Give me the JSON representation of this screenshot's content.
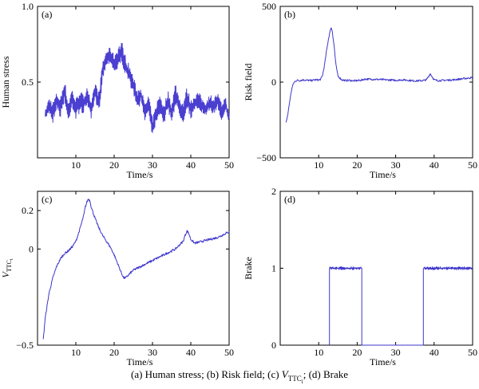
{
  "chart_data": [
    {
      "type": "line",
      "panel_label": "(a)",
      "xlabel": "Time/s",
      "ylabel": "Human stress",
      "xlim": [
        0,
        50
      ],
      "ylim": [
        0,
        1
      ],
      "xticks": [
        10,
        20,
        30,
        40,
        50
      ],
      "xtick_labels": [
        "10",
        "20",
        "30",
        "40",
        "50"
      ],
      "yticks": [
        0.5,
        1
      ],
      "ytick_labels": [
        "0.5",
        "1.0"
      ],
      "line_color": "#4a3fd0",
      "x": [
        2,
        3,
        4,
        5,
        6,
        7,
        8,
        9,
        10,
        11,
        12,
        13,
        14,
        15,
        16,
        17,
        18,
        19,
        20,
        21,
        22,
        23,
        24,
        25,
        26,
        27,
        28,
        29,
        30,
        31,
        32,
        33,
        34,
        35,
        36,
        37,
        38,
        39,
        40,
        41,
        42,
        43,
        44,
        45,
        46,
        47,
        48,
        49,
        50
      ],
      "y": [
        0.28,
        0.35,
        0.3,
        0.38,
        0.33,
        0.45,
        0.3,
        0.4,
        0.32,
        0.38,
        0.35,
        0.42,
        0.3,
        0.44,
        0.36,
        0.58,
        0.66,
        0.68,
        0.62,
        0.66,
        0.7,
        0.6,
        0.55,
        0.48,
        0.38,
        0.42,
        0.3,
        0.36,
        0.2,
        0.3,
        0.36,
        0.28,
        0.38,
        0.3,
        0.42,
        0.34,
        0.3,
        0.4,
        0.32,
        0.36,
        0.38,
        0.34,
        0.32,
        0.37,
        0.34,
        0.38,
        0.3,
        0.36,
        0.26
      ],
      "amplitude": [
        0.06,
        0.1,
        0.14,
        0.1,
        0.14,
        0.16,
        0.14,
        0.12,
        0.14,
        0.16,
        0.12,
        0.14,
        0.1,
        0.14,
        0.14,
        0.12,
        0.1,
        0.1,
        0.12,
        0.16,
        0.14,
        0.14,
        0.12,
        0.12,
        0.14,
        0.12,
        0.1,
        0.12,
        0.12,
        0.12,
        0.14,
        0.12,
        0.14,
        0.12,
        0.16,
        0.12,
        0.14,
        0.14,
        0.12,
        0.12,
        0.12,
        0.1,
        0.12,
        0.1,
        0.12,
        0.1,
        0.12,
        0.1,
        0.06
      ]
    },
    {
      "type": "line",
      "panel_label": "(b)",
      "xlabel": "Time/s",
      "ylabel": "Risk field",
      "xlim": [
        0,
        50
      ],
      "ylim": [
        -500,
        500
      ],
      "xticks": [
        10,
        20,
        30,
        40,
        50
      ],
      "xtick_labels": [
        "10",
        "20",
        "30",
        "40",
        "50"
      ],
      "yticks": [
        -500,
        0,
        500
      ],
      "ytick_labels": [
        "−500",
        "0",
        "500"
      ],
      "line_color": "#3e36cc",
      "x": [
        1.5,
        2,
        2.5,
        3,
        3.5,
        4,
        4.5,
        5,
        6,
        7,
        8,
        9,
        10,
        10.5,
        11,
        11.5,
        12,
        12.5,
        13,
        13.2,
        13.5,
        14,
        14.5,
        15,
        16,
        17,
        18,
        19,
        20,
        21,
        22,
        25,
        30,
        32,
        35,
        37,
        38,
        38.5,
        39,
        39.5,
        40,
        41,
        45,
        50
      ],
      "y": [
        -270,
        -210,
        -120,
        -45,
        -5,
        8,
        12,
        10,
        15,
        12,
        10,
        15,
        14,
        18,
        45,
        110,
        200,
        280,
        340,
        360,
        340,
        240,
        110,
        40,
        15,
        10,
        12,
        8,
        10,
        12,
        20,
        18,
        12,
        15,
        8,
        10,
        15,
        35,
        55,
        35,
        15,
        10,
        15,
        30
      ],
      "noise": 6
    },
    {
      "type": "line",
      "panel_label": "(c)",
      "xlabel": "Time/s",
      "ylabel": "V",
      "ylabel_subscript": "TTC",
      "ylabel_sub_subscript": "i",
      "xlim": [
        0,
        50
      ],
      "ylim": [
        -0.5,
        0.3
      ],
      "xticks": [
        10,
        20,
        30,
        40,
        50
      ],
      "xtick_labels": [
        "10",
        "20",
        "30",
        "40",
        "50"
      ],
      "yticks": [
        -0.5,
        0,
        0.2
      ],
      "ytick_labels": [
        "−0.5",
        "0",
        "0.2"
      ],
      "line_color": "#3e36cc",
      "x": [
        1.5,
        2,
        3,
        4,
        5,
        6,
        7,
        8,
        9,
        10,
        11,
        12,
        12.5,
        13,
        13.3,
        13.7,
        14,
        15,
        16,
        17,
        18,
        19,
        20,
        21,
        22,
        22.5,
        23,
        24,
        25,
        26,
        28,
        30,
        32,
        34,
        36,
        37,
        38,
        38.5,
        39,
        39.5,
        40,
        41,
        43,
        45,
        47,
        49,
        50
      ],
      "y": [
        -0.47,
        -0.36,
        -0.23,
        -0.15,
        -0.09,
        -0.05,
        -0.025,
        -0.01,
        0.01,
        0.04,
        0.1,
        0.17,
        0.22,
        0.25,
        0.26,
        0.25,
        0.22,
        0.16,
        0.11,
        0.07,
        0.04,
        0.01,
        -0.03,
        -0.08,
        -0.13,
        -0.15,
        -0.15,
        -0.13,
        -0.11,
        -0.1,
        -0.08,
        -0.06,
        -0.04,
        -0.02,
        0.0,
        0.02,
        0.04,
        0.07,
        0.095,
        0.08,
        0.05,
        0.03,
        0.04,
        0.05,
        0.06,
        0.08,
        0.09
      ],
      "noise": 0.006
    },
    {
      "type": "line",
      "panel_label": "(d)",
      "xlabel": "Time/s",
      "ylabel": "Brake",
      "xlim": [
        0,
        50
      ],
      "ylim": [
        0,
        2
      ],
      "xticks": [
        10,
        20,
        30,
        40,
        50
      ],
      "xtick_labels": [
        "10",
        "20",
        "30",
        "40",
        "50"
      ],
      "yticks": [
        0,
        1,
        2
      ],
      "ytick_labels": [
        "0",
        "1",
        "2"
      ],
      "line_color": "#3e36cc",
      "x": [
        12.8,
        12.8,
        21.2,
        21.2,
        37.2,
        37.2,
        50
      ],
      "y": [
        0,
        1,
        1,
        0,
        0,
        1,
        1
      ],
      "noise": 0.02,
      "noise_ranges": [
        [
          12.8,
          21.2
        ],
        [
          37.2,
          50
        ]
      ]
    }
  ],
  "caption": {
    "part1": "(a) Human stress; (b) Risk field; (c) ",
    "v": "V",
    "sub": "TTC",
    "subsub": "i",
    "part2": "; (d) Brake"
  }
}
